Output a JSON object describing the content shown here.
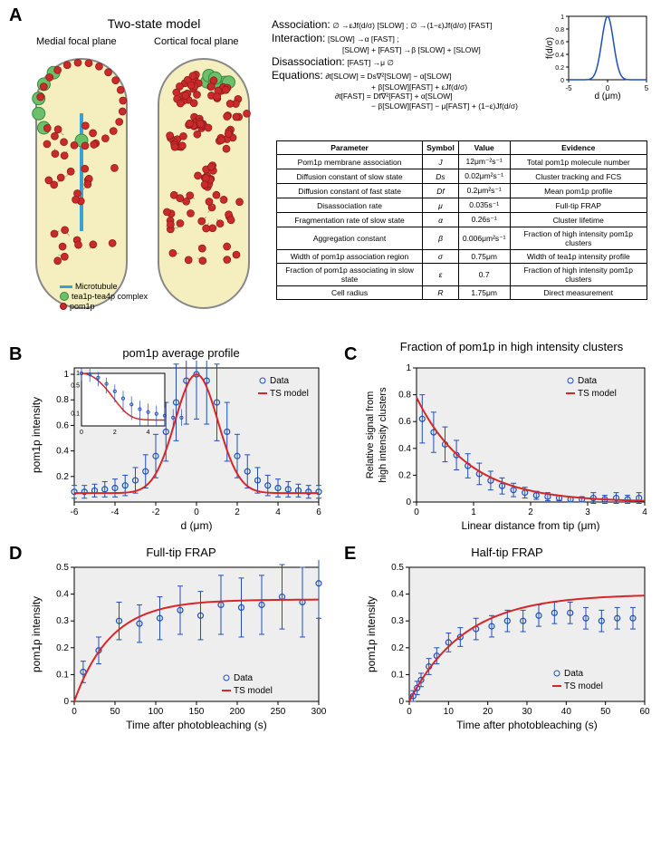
{
  "panelA": {
    "label": "A",
    "title": "Two-state model",
    "medial_label": "Medial focal plane",
    "cortical_label": "Cortical focal plane",
    "legend": {
      "microtubule": "Microtubule",
      "tea": "tea1p-tea4p complex",
      "pom1p": "pom1p"
    },
    "eqs": {
      "assoc_label": "Association:",
      "assoc_text": "∅ →εJf(d/σ) [SLOW] ; ∅ →(1−ε)Jf(d/σ) [FAST]",
      "inter_label": "Interaction:",
      "inter_text1": "[SLOW] →α [FAST] ;",
      "inter_text2": "[SLOW] + [FAST] →β [SLOW] + [SLOW]",
      "disassoc_label": "Disassociation:",
      "disassoc_text": "[FAST] →μ ∅",
      "equations_label": "Equations:",
      "eq1": "∂t[SLOW] = Ds∇²[SLOW] − α[SLOW]",
      "eq1b": "+ β[SLOW][FAST] + εJf(d/σ)",
      "eq2": "∂t[FAST] = Df∇²[FAST] + α[SLOW]",
      "eq2b": "− β[SLOW][FAST] − μ[FAST] + (1−ε)Jf(d/σ)"
    },
    "inset_chart": {
      "type": "line",
      "xlabel": "d (μm)",
      "ylabel": "f(d/σ)",
      "xlim": [
        -5,
        5
      ],
      "ylim": [
        0,
        1
      ],
      "xticks": [
        -5,
        0,
        5
      ],
      "yticks": [
        0,
        0.2,
        0.4,
        0.6,
        0.8,
        1
      ],
      "line_color": "#1f4fb8",
      "background": "#ffffff",
      "sigma": 0.75
    },
    "table": {
      "headers": [
        "Parameter",
        "Symbol",
        "Value",
        "Evidence"
      ],
      "rows": [
        [
          "Pom1p membrane association",
          "J",
          "12μm⁻²s⁻¹",
          "Total pom1p molecule number"
        ],
        [
          "Diffusion constant of slow state",
          "Ds",
          "0.02μm²s⁻¹",
          "Cluster tracking and FCS"
        ],
        [
          "Diffusion constant of fast state",
          "Df",
          "0.2μm²s⁻¹",
          "Mean pom1p profile"
        ],
        [
          "Disassociation rate",
          "μ",
          "0.035s⁻¹",
          "Full-tip FRAP"
        ],
        [
          "Fragmentation rate of slow state",
          "α",
          "0.26s⁻¹",
          "Cluster lifetime"
        ],
        [
          "Aggregation constant",
          "β",
          "0.006μm²s⁻¹",
          "Fraction of high intensity pom1p clusters"
        ],
        [
          "Width of pom1p association region",
          "σ",
          "0.75μm",
          "Width of tea1p intensity profile"
        ],
        [
          "Fraction of pom1p associating in slow state",
          "ε",
          "0.7",
          "Fraction of high intensity pom1p clusters"
        ],
        [
          "Cell radius",
          "R",
          "1.75μm",
          "Direct measurement"
        ]
      ]
    },
    "cells": {
      "bg": "#f5efbf",
      "outline": "#888888",
      "pom_color": "#c92a2a",
      "pom_stroke": "#8a1a1a",
      "tea_color": "#6cc06c",
      "tea_stroke": "#3a8a3a",
      "mt_color": "#3aa0d8"
    }
  },
  "panelB": {
    "label": "B",
    "title": "pom1p average profile",
    "xlabel": "d (μm)",
    "ylabel": "pom1p intensity",
    "xlim": [
      -6,
      6
    ],
    "ylim": [
      0,
      1.05
    ],
    "xticks": [
      -6,
      -4,
      -2,
      0,
      2,
      4,
      6
    ],
    "yticks": [
      0.2,
      0.4,
      0.6,
      0.8,
      1
    ],
    "data_color": "#1f4fb8",
    "model_color": "#d62728",
    "grid_color": "#e8e8e8",
    "background": "#eeeeee",
    "data_x": [
      -6,
      -5.5,
      -5,
      -4.5,
      -4,
      -3.5,
      -3,
      -2.5,
      -2,
      -1.5,
      -1,
      -0.5,
      0,
      0.5,
      1,
      1.5,
      2,
      2.5,
      3,
      3.5,
      4,
      4.5,
      5,
      5.5,
      6
    ],
    "data_y": [
      0.08,
      0.08,
      0.09,
      0.1,
      0.11,
      0.13,
      0.17,
      0.24,
      0.36,
      0.55,
      0.78,
      0.95,
      1.0,
      0.95,
      0.78,
      0.55,
      0.36,
      0.24,
      0.17,
      0.13,
      0.11,
      0.1,
      0.09,
      0.08,
      0.08
    ],
    "data_err": [
      0.05,
      0.05,
      0.05,
      0.06,
      0.07,
      0.08,
      0.1,
      0.13,
      0.17,
      0.23,
      0.3,
      0.34,
      0.35,
      0.34,
      0.3,
      0.23,
      0.17,
      0.13,
      0.1,
      0.08,
      0.07,
      0.06,
      0.05,
      0.05,
      0.05
    ],
    "legend": {
      "data": "Data",
      "model": "TS model"
    },
    "inset": {
      "xlim": [
        0,
        5
      ],
      "ylim": [
        0,
        1
      ],
      "xticks": [
        0,
        2,
        4
      ],
      "yticks": [
        0.1,
        0.5,
        1
      ]
    }
  },
  "panelC": {
    "label": "C",
    "title": "Fraction of pom1p in high intensity clusters",
    "xlabel": "Linear distance from tip (μm)",
    "ylabel": "Relative signal from high intensity clusters",
    "xlim": [
      0,
      4
    ],
    "ylim": [
      0,
      1
    ],
    "xticks": [
      0,
      1,
      2,
      3,
      4
    ],
    "yticks": [
      0,
      0.2,
      0.4,
      0.6,
      0.8,
      1
    ],
    "data_color": "#1f4fb8",
    "model_color": "#d62728",
    "background": "#eeeeee",
    "data_x": [
      0.1,
      0.3,
      0.5,
      0.7,
      0.9,
      1.1,
      1.3,
      1.5,
      1.7,
      1.9,
      2.1,
      2.3,
      2.5,
      2.7,
      2.9,
      3.1,
      3.3,
      3.5,
      3.7,
      3.9
    ],
    "data_y": [
      0.62,
      0.52,
      0.43,
      0.35,
      0.27,
      0.21,
      0.16,
      0.12,
      0.09,
      0.07,
      0.05,
      0.04,
      0.03,
      0.02,
      0.02,
      0.03,
      0.02,
      0.03,
      0.02,
      0.03
    ],
    "data_err": [
      0.18,
      0.15,
      0.13,
      0.11,
      0.09,
      0.08,
      0.07,
      0.06,
      0.05,
      0.04,
      0.03,
      0.03,
      0.02,
      0.02,
      0.02,
      0.04,
      0.03,
      0.04,
      0.03,
      0.04
    ],
    "legend": {
      "data": "Data",
      "model": "TS model"
    }
  },
  "panelD": {
    "label": "D",
    "title": "Full-tip FRAP",
    "xlabel": "Time after photobleaching (s)",
    "ylabel": "pom1p intensity",
    "xlim": [
      0,
      300
    ],
    "ylim": [
      0,
      0.5
    ],
    "xticks": [
      0,
      50,
      100,
      150,
      200,
      250,
      300
    ],
    "yticks": [
      0,
      0.1,
      0.2,
      0.3,
      0.4,
      0.5
    ],
    "data_color": "#1f4fb8",
    "model_color": "#d62728",
    "background": "#eeeeee",
    "data_x": [
      11,
      30,
      55,
      80,
      105,
      130,
      155,
      180,
      205,
      230,
      255,
      280,
      300
    ],
    "data_y": [
      0.11,
      0.19,
      0.3,
      0.29,
      0.31,
      0.34,
      0.32,
      0.36,
      0.35,
      0.36,
      0.39,
      0.37,
      0.44
    ],
    "data_err": [
      0.04,
      0.05,
      0.07,
      0.07,
      0.08,
      0.09,
      0.09,
      0.11,
      0.11,
      0.11,
      0.12,
      0.13,
      0.13
    ],
    "model_tau": 45,
    "model_asym": 0.38,
    "legend": {
      "data": "Data",
      "model": "TS model"
    }
  },
  "panelE": {
    "label": "E",
    "title": "Half-tip FRAP",
    "xlabel": "Time after photobleaching (s)",
    "ylabel": "pom1p intensity",
    "xlim": [
      0,
      60
    ],
    "ylim": [
      0,
      0.5
    ],
    "xticks": [
      0,
      10,
      20,
      30,
      40,
      50,
      60
    ],
    "yticks": [
      0,
      0.1,
      0.2,
      0.3,
      0.4,
      0.5
    ],
    "data_color": "#1f4fb8",
    "model_color": "#d62728",
    "background": "#eeeeee",
    "data_x": [
      1,
      2,
      3,
      5,
      7,
      10,
      13,
      17,
      21,
      25,
      29,
      33,
      37,
      41,
      45,
      49,
      53,
      57
    ],
    "data_y": [
      0.02,
      0.05,
      0.08,
      0.13,
      0.17,
      0.22,
      0.24,
      0.27,
      0.28,
      0.3,
      0.3,
      0.32,
      0.33,
      0.33,
      0.31,
      0.3,
      0.31,
      0.31
    ],
    "data_err": [
      0.02,
      0.025,
      0.025,
      0.03,
      0.03,
      0.035,
      0.035,
      0.04,
      0.04,
      0.04,
      0.04,
      0.04,
      0.04,
      0.04,
      0.04,
      0.04,
      0.04,
      0.04
    ],
    "model_tau": 14,
    "model_asym": 0.4,
    "legend": {
      "data": "Data",
      "model": "TS model"
    }
  },
  "colors": {
    "axis": "#000000",
    "tick_font_size": 10
  }
}
